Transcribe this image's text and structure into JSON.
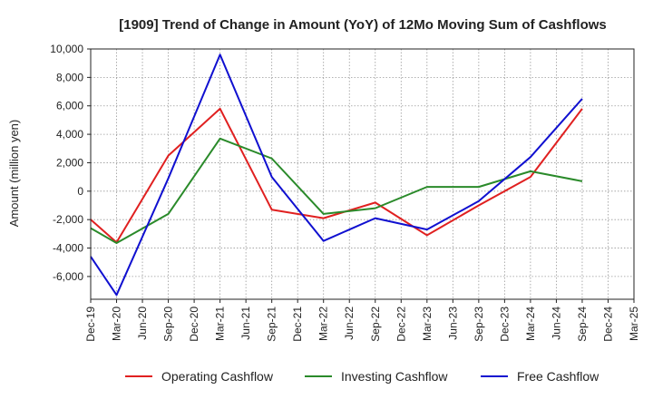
{
  "chart_data": {
    "type": "line",
    "title": "[1909]  Trend of Change in Amount (YoY) of 12Mo Moving Sum of Cashflows",
    "xlabel": "",
    "ylabel": "Amount (million yen)",
    "ylim": [
      -7600,
      10000
    ],
    "yticks": [
      10000,
      8000,
      6000,
      4000,
      2000,
      0,
      -2000,
      -4000,
      -6000
    ],
    "ytick_labels": [
      "10,000",
      "8,000",
      "6,000",
      "4,000",
      "2,000",
      "0",
      "-2,000",
      "-4,000",
      "-6,000"
    ],
    "categories": [
      "Dec-19",
      "Mar-20",
      "Jun-20",
      "Sep-20",
      "Dec-20",
      "Mar-21",
      "Jun-21",
      "Sep-21",
      "Dec-21",
      "Mar-22",
      "Jun-22",
      "Sep-22",
      "Dec-22",
      "Mar-23",
      "Jun-23",
      "Sep-23",
      "Dec-23",
      "Mar-24",
      "Jun-24",
      "Sep-24",
      "Dec-24",
      "Mar-25"
    ],
    "grid": true,
    "legend_position": "bottom",
    "series": [
      {
        "name": "Operating Cashflow",
        "color": "#e02020",
        "points": [
          [
            0,
            -2000
          ],
          [
            1,
            -3600
          ],
          [
            3,
            2500
          ],
          [
            5,
            5800
          ],
          [
            7,
            -1300
          ],
          [
            9,
            -1900
          ],
          [
            11,
            -800
          ],
          [
            13,
            -3100
          ],
          [
            15,
            -1000
          ],
          [
            17,
            1000
          ],
          [
            19,
            5800
          ]
        ]
      },
      {
        "name": "Investing Cashflow",
        "color": "#2a8a2a",
        "points": [
          [
            0,
            -2600
          ],
          [
            1,
            -3650
          ],
          [
            3,
            -1600
          ],
          [
            5,
            3700
          ],
          [
            7,
            2300
          ],
          [
            9,
            -1600
          ],
          [
            11,
            -1200
          ],
          [
            13,
            300
          ],
          [
            15,
            300
          ],
          [
            17,
            1400
          ],
          [
            19,
            700
          ]
        ]
      },
      {
        "name": "Free Cashflow",
        "color": "#1010d0",
        "points": [
          [
            0,
            -4600
          ],
          [
            1,
            -7300
          ],
          [
            3,
            900
          ],
          [
            5,
            9600
          ],
          [
            7,
            1000
          ],
          [
            9,
            -3500
          ],
          [
            11,
            -1900
          ],
          [
            13,
            -2700
          ],
          [
            15,
            -700
          ],
          [
            17,
            2400
          ],
          [
            19,
            6500
          ]
        ]
      }
    ]
  }
}
